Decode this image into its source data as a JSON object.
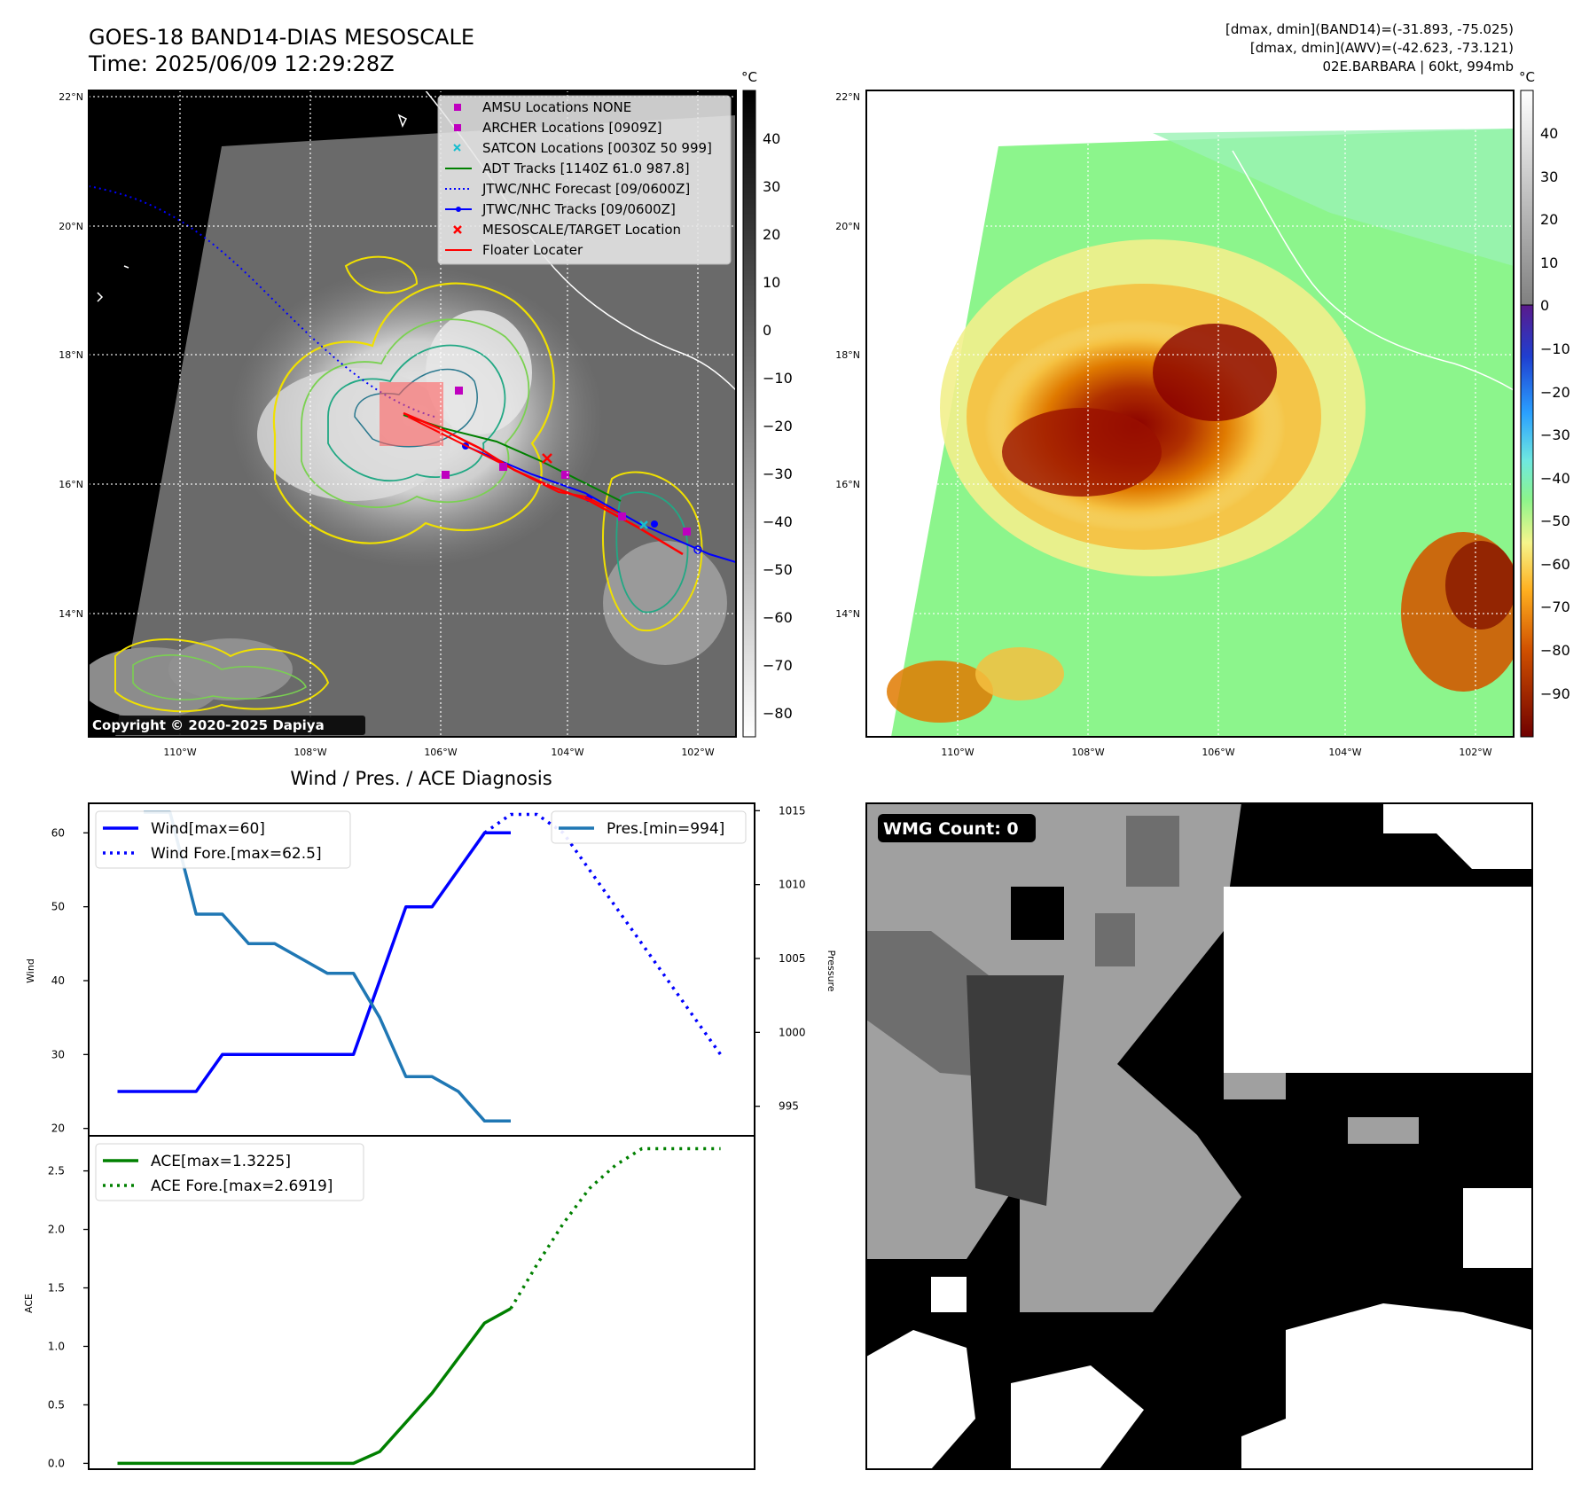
{
  "header": {
    "title": "GOES-18 BAND14-DIAS MESOSCALE",
    "time": "Time: 2025/06/09 12:29:28Z",
    "stats_band14": "[dmax, dmin](BAND14)=(-31.893, -75.025)",
    "stats_awv": "[dmax, dmin](AWV)=(-42.623, -73.121)",
    "storm": "02E.BARBARA | 60kt, 994mb"
  },
  "maps": {
    "lat_labels": [
      "22°N",
      "20°N",
      "18°N",
      "16°N",
      "14°N"
    ],
    "lon_labels": [
      "110°W",
      "108°W",
      "106°W",
      "104°W",
      "102°W"
    ],
    "copyright": "Copyright © 2020-2025 Dapiya",
    "unit": "°C",
    "colorbar_gray_ticks": [
      "40",
      "30",
      "20",
      "10",
      "0",
      "−10",
      "−20",
      "−30",
      "−40",
      "−50",
      "−60",
      "−70",
      "−80"
    ],
    "colorbar_color_ticks": [
      "40",
      "30",
      "20",
      "10",
      "0",
      "−10",
      "−20",
      "−30",
      "−40",
      "−50",
      "−60",
      "−70",
      "−80",
      "−90"
    ],
    "legend": [
      {
        "label": "AMSU Locations NONE",
        "color": "#bf00bf",
        "marker": "square"
      },
      {
        "label": "ARCHER Locations [0909Z]",
        "color": "#bf00bf",
        "marker": "square"
      },
      {
        "label": "SATCON Locations [0030Z 50 999]",
        "color": "#17becf",
        "marker": "x"
      },
      {
        "label": "ADT Tracks [1140Z 61.0 987.8]",
        "color": "#008000",
        "marker": "line"
      },
      {
        "label": "JTWC/NHC Forecast [09/0600Z]",
        "color": "#0000ff",
        "marker": "dotted"
      },
      {
        "label": "JTWC/NHC Tracks [09/0600Z]",
        "color": "#0000ff",
        "marker": "line-dot"
      },
      {
        "label": "MESOSCALE/TARGET Location",
        "color": "#ff0000",
        "marker": "x"
      },
      {
        "label": "Floater Locater",
        "color": "#ff0000",
        "marker": "line"
      }
    ],
    "wmg_count": "WMG Count: 0"
  },
  "diagnosis": {
    "title": "Wind / Pres. / ACE Diagnosis",
    "wind_ylabel": "Wind",
    "pres_ylabel": "Pressure",
    "ace_ylabel": "ACE",
    "wind_ticks": [
      "60",
      "50",
      "40",
      "30",
      "20"
    ],
    "pres_ticks": [
      "1015",
      "1010",
      "1005",
      "1000",
      "995"
    ],
    "ace_ticks": [
      "2.5",
      "2.0",
      "1.5",
      "1.0",
      "0.5",
      "0.0"
    ],
    "legend_wind": "Wind[max=60]",
    "legend_wind_fore": "Wind Fore.[max=62.5]",
    "legend_pres": "Pres.[min=994]",
    "legend_ace": "ACE[max=1.3225]",
    "legend_ace_fore": "ACE Fore.[max=2.6919]"
  },
  "chart_data": [
    {
      "type": "line",
      "title": "Wind / Pres. / ACE Diagnosis",
      "x": [
        0,
        1,
        2,
        3,
        4,
        5,
        6,
        7,
        8,
        9,
        10,
        11,
        12,
        13,
        14,
        15,
        16,
        17,
        18,
        19,
        20,
        21,
        22,
        23
      ],
      "series": [
        {
          "name": "Wind[max=60]",
          "axis": "left",
          "color": "#0000ff",
          "x": [
            0,
            1,
            2,
            3,
            4,
            5,
            6,
            7,
            8,
            9,
            10,
            11,
            12,
            13,
            14,
            15
          ],
          "values": [
            25,
            25,
            25,
            25,
            30,
            30,
            30,
            30,
            30,
            30,
            40,
            50,
            50,
            55,
            60,
            60
          ]
        },
        {
          "name": "Wind Fore.[max=62.5]",
          "axis": "left",
          "color": "#0000ff",
          "style": "dotted",
          "x": [
            14,
            15,
            16,
            17,
            18,
            19,
            20,
            21,
            22,
            23
          ],
          "values": [
            60,
            62.5,
            62.5,
            60,
            55,
            50,
            45,
            40,
            35,
            30
          ]
        },
        {
          "name": "Pres.[min=994]",
          "axis": "right",
          "color": "#1f77b4",
          "x": [
            1,
            2,
            3,
            4,
            5,
            6,
            7,
            8,
            9,
            10,
            11,
            12,
            13,
            14,
            15
          ],
          "values": [
            1014.9,
            1014.9,
            1008,
            1008,
            1006,
            1006,
            1005,
            1004,
            1004,
            1001,
            997,
            997,
            996,
            994,
            994
          ]
        }
      ],
      "ylabel": "Wind",
      "ylim": [
        19,
        64
      ],
      "y2label": "Pressure",
      "y2lim": [
        993,
        1015.5
      ]
    },
    {
      "type": "line",
      "series": [
        {
          "name": "ACE[max=1.3225]",
          "color": "#008000",
          "x": [
            0,
            1,
            2,
            3,
            4,
            5,
            6,
            7,
            8,
            9,
            10,
            11,
            12,
            13,
            14,
            15
          ],
          "values": [
            0,
            0,
            0,
            0,
            0,
            0,
            0,
            0,
            0,
            0,
            0.1,
            0.35,
            0.6,
            0.9,
            1.2,
            1.3225
          ]
        },
        {
          "name": "ACE Fore.[max=2.6919]",
          "color": "#008000",
          "style": "dotted",
          "x": [
            15,
            16,
            17,
            18,
            19,
            20,
            21,
            22,
            23
          ],
          "values": [
            1.3225,
            1.7,
            2.05,
            2.35,
            2.55,
            2.69,
            2.69,
            2.69,
            2.69
          ]
        }
      ],
      "ylabel": "ACE",
      "ylim": [
        -0.05,
        2.8
      ]
    }
  ]
}
